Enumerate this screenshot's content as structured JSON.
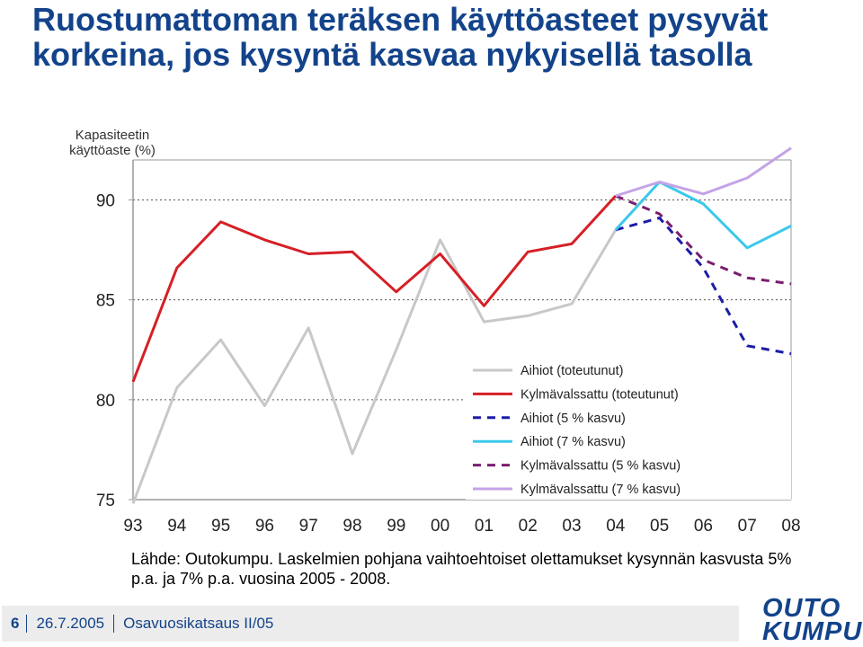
{
  "title": "Ruostumattoman teräksen käyttöasteet pysyvät korkeina, jos kysyntä kasvaa nykyisellä tasolla",
  "source": "Lähde: Outokumpu. Laskelmien pohjana vaihtoehtoiset olettamukset kysynnän kasvusta 5% p.a. ja 7% p.a. vuosina 2005 - 2008.",
  "footer": {
    "page": "6",
    "date": "26.7.2005",
    "report": "Osavuosikatsaus II/05"
  },
  "logo": [
    "OUTO",
    "KUMPU"
  ],
  "colors": {
    "title": "#13438a"
  },
  "chart_data": {
    "type": "line",
    "ylabel": "Kapasiteetin käyttöaste (%)",
    "categories": [
      "93",
      "94",
      "95",
      "96",
      "97",
      "98",
      "99",
      "00",
      "01",
      "02",
      "03",
      "04",
      "05",
      "06",
      "07",
      "08"
    ],
    "ylim": [
      75,
      92
    ],
    "yticks": [
      75,
      80,
      85,
      90
    ],
    "gridlines": [
      80,
      85,
      90
    ],
    "legend_position": "bottom-right",
    "series": [
      {
        "name": "Aihiot (toteutunut)",
        "color": "#c8c8c8",
        "dash": "solid",
        "values": [
          74.8,
          80.6,
          83.0,
          79.7,
          83.6,
          77.3,
          82.5,
          88.0,
          83.9,
          84.2,
          84.8,
          88.5,
          null,
          null,
          null,
          null
        ]
      },
      {
        "name": "Kylmävalssattu (toteutunut)",
        "color": "#d61f26",
        "dash": "solid",
        "values": [
          80.9,
          86.6,
          88.9,
          88.0,
          87.3,
          87.4,
          85.4,
          87.3,
          84.7,
          87.4,
          87.8,
          90.2,
          null,
          null,
          null,
          null
        ]
      },
      {
        "name": "Aihiot (5 % kasvu)",
        "color": "#1c1ca6",
        "dash": "dashed",
        "values": [
          null,
          null,
          null,
          null,
          null,
          null,
          null,
          null,
          null,
          null,
          null,
          88.5,
          89.1,
          86.6,
          82.7,
          82.3
        ]
      },
      {
        "name": "Aihiot (7 % kasvu)",
        "color": "#3cc8ec",
        "dash": "solid",
        "values": [
          null,
          null,
          null,
          null,
          null,
          null,
          null,
          null,
          null,
          null,
          null,
          88.5,
          90.9,
          89.8,
          87.6,
          88.7
        ]
      },
      {
        "name": "Kylmävalssattu (5 % kasvu)",
        "color": "#7a1d6e",
        "dash": "dashed",
        "values": [
          null,
          null,
          null,
          null,
          null,
          null,
          null,
          null,
          null,
          null,
          null,
          90.2,
          89.3,
          87.0,
          86.1,
          85.8
        ]
      },
      {
        "name": "Kylmävalssattu (7 % kasvu)",
        "color": "#c5a3e6",
        "dash": "solid",
        "values": [
          null,
          null,
          null,
          null,
          null,
          null,
          null,
          null,
          null,
          null,
          null,
          90.2,
          90.9,
          90.3,
          91.1,
          92.6
        ]
      }
    ]
  }
}
